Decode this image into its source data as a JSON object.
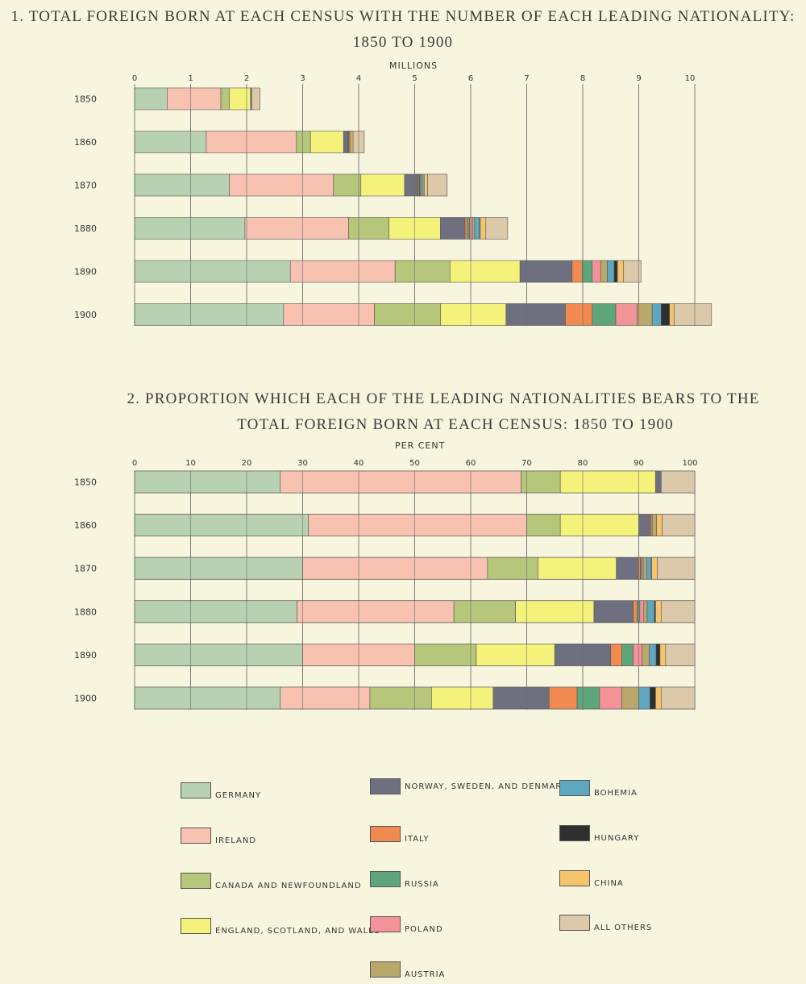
{
  "chart_data": [
    {
      "type": "bar",
      "title": "1. TOTAL FOREIGN BORN AT EACH CENSUS WITH THE NUMBER OF EACH LEADING NATIONALITY:",
      "subtitle": "1850 TO 1900",
      "xlabel": "MILLIONS",
      "xlim": [
        0,
        10
      ],
      "ticks": [
        "0",
        "1",
        "2",
        "3",
        "4",
        "5",
        "6",
        "7",
        "8",
        "9",
        "10"
      ],
      "categories": [
        "1850",
        "1860",
        "1870",
        "1880",
        "1890",
        "1900"
      ],
      "grid": true,
      "stacked": true,
      "orientation": "horizontal",
      "series": [
        {
          "key": "germany",
          "values": [
            0.58,
            1.28,
            1.69,
            1.97,
            2.78,
            2.66
          ]
        },
        {
          "key": "ireland",
          "values": [
            0.96,
            1.61,
            1.86,
            1.85,
            1.87,
            1.62
          ]
        },
        {
          "key": "canada",
          "values": [
            0.15,
            0.25,
            0.49,
            0.72,
            0.98,
            1.18
          ]
        },
        {
          "key": "england",
          "values": [
            0.38,
            0.59,
            0.78,
            0.92,
            1.25,
            1.17
          ]
        },
        {
          "key": "norway",
          "values": [
            0.02,
            0.08,
            0.24,
            0.44,
            0.93,
            1.06
          ]
        },
        {
          "key": "italy",
          "values": [
            0.0,
            0.01,
            0.02,
            0.04,
            0.18,
            0.48
          ]
        },
        {
          "key": "russia",
          "values": [
            0.0,
            0.0,
            0.01,
            0.04,
            0.18,
            0.42
          ]
        },
        {
          "key": "poland",
          "values": [
            0.0,
            0.01,
            0.01,
            0.05,
            0.15,
            0.38
          ]
        },
        {
          "key": "austria",
          "values": [
            0.0,
            0.03,
            0.03,
            0.04,
            0.12,
            0.27
          ]
        },
        {
          "key": "bohemia",
          "values": [
            0.0,
            0.0,
            0.04,
            0.09,
            0.12,
            0.16
          ]
        },
        {
          "key": "hungary",
          "values": [
            0.0,
            0.0,
            0.0,
            0.01,
            0.06,
            0.15
          ]
        },
        {
          "key": "china",
          "values": [
            0.0,
            0.04,
            0.06,
            0.1,
            0.11,
            0.08
          ]
        },
        {
          "key": "allothers",
          "values": [
            0.15,
            0.2,
            0.35,
            0.39,
            0.31,
            0.67
          ]
        }
      ]
    },
    {
      "type": "bar",
      "title": "2. PROPORTION WHICH EACH OF THE LEADING NATIONALITIES BEARS TO THE",
      "subtitle": "TOTAL FOREIGN BORN AT EACH CENSUS: 1850 TO 1900",
      "xlabel": "PER CENT",
      "xlim": [
        0,
        100
      ],
      "ticks": [
        "0",
        "10",
        "20",
        "30",
        "40",
        "50",
        "60",
        "70",
        "80",
        "90",
        "100"
      ],
      "categories": [
        "1850",
        "1860",
        "1870",
        "1880",
        "1890",
        "1900"
      ],
      "grid": true,
      "stacked": true,
      "orientation": "horizontal",
      "series": [
        {
          "key": "germany",
          "values": [
            26.0,
            31.0,
            30.0,
            29.0,
            30.0,
            26.0
          ]
        },
        {
          "key": "ireland",
          "values": [
            43.0,
            39.0,
            33.0,
            28.0,
            20.0,
            16.0
          ]
        },
        {
          "key": "canada",
          "values": [
            7.0,
            6.0,
            9.0,
            11.0,
            11.0,
            11.0
          ]
        },
        {
          "key": "england",
          "values": [
            17.0,
            14.0,
            14.0,
            14.0,
            14.0,
            11.0
          ]
        },
        {
          "key": "norway",
          "values": [
            1.0,
            2.0,
            4.0,
            7.0,
            10.0,
            10.0
          ]
        },
        {
          "key": "italy",
          "values": [
            0.0,
            0.2,
            0.3,
            0.7,
            2.0,
            5.0
          ]
        },
        {
          "key": "russia",
          "values": [
            0.0,
            0.0,
            0.2,
            0.5,
            2.0,
            4.0
          ]
        },
        {
          "key": "poland",
          "values": [
            0.0,
            0.2,
            0.3,
            0.7,
            1.6,
            4.0
          ]
        },
        {
          "key": "austria",
          "values": [
            0.0,
            0.8,
            0.6,
            0.6,
            1.3,
            3.0
          ]
        },
        {
          "key": "bohemia",
          "values": [
            0.0,
            0.0,
            0.8,
            1.3,
            1.2,
            2.0
          ]
        },
        {
          "key": "hungary",
          "values": [
            0.0,
            0.0,
            0.1,
            0.2,
            0.7,
            1.0
          ]
        },
        {
          "key": "china",
          "values": [
            0.0,
            1.0,
            1.0,
            1.0,
            1.0,
            1.0
          ]
        },
        {
          "key": "allothers",
          "values": [
            6.0,
            5.8,
            6.7,
            6.0,
            5.2,
            6.0
          ]
        }
      ]
    }
  ],
  "legend": [
    {
      "key": "germany",
      "label": "GERMANY",
      "color": "#b9d1b3"
    },
    {
      "key": "ireland",
      "label": "IRELAND",
      "color": "#f7c2b0"
    },
    {
      "key": "canada",
      "label": "CANADA AND NEWFOUNDLAND",
      "color": "#b6c67a"
    },
    {
      "key": "england",
      "label": "ENGLAND, SCOTLAND, AND WALES",
      "color": "#f5f27c"
    },
    {
      "key": "norway",
      "label": "NORWAY, SWEDEN, AND DENMARK",
      "color": "#6e7080"
    },
    {
      "key": "italy",
      "label": "ITALY",
      "color": "#f08a50"
    },
    {
      "key": "russia",
      "label": "RUSSIA",
      "color": "#5fa57c"
    },
    {
      "key": "poland",
      "label": "POLAND",
      "color": "#f4929a"
    },
    {
      "key": "austria",
      "label": "AUSTRIA",
      "color": "#b8a86a"
    },
    {
      "key": "bohemia",
      "label": "BOHEMIA",
      "color": "#5fa7c0"
    },
    {
      "key": "hungary",
      "label": "HUNGARY",
      "color": "#2f2f2f"
    },
    {
      "key": "china",
      "label": "CHINA",
      "color": "#f6c46c"
    },
    {
      "key": "allothers",
      "label": "ALL OTHERS",
      "color": "#dcc9aa"
    }
  ]
}
